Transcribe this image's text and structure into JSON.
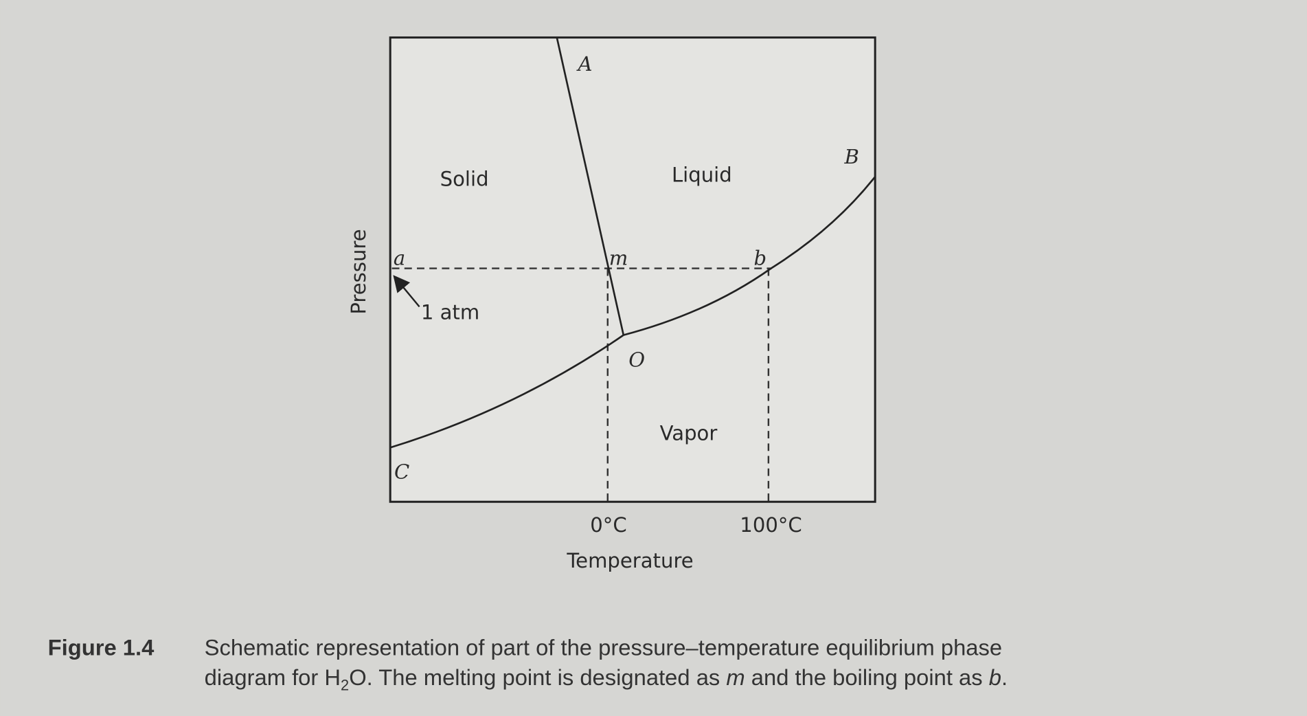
{
  "diagram": {
    "regions": {
      "solid": "Solid",
      "liquid": "Liquid",
      "vapor": "Vapor"
    },
    "points": {
      "A": "A",
      "B": "B",
      "C": "C",
      "O": "O",
      "a": "a",
      "m": "m",
      "b": "b"
    },
    "pressure_label": "1 atm",
    "x_ticks": [
      "0°C",
      "100°C"
    ],
    "x_axis_label": "Temperature",
    "y_axis_label": "Pressure"
  },
  "caption": {
    "label": "Figure 1.4",
    "line1": "Schematic representation of part of the pressure–temperature equilibrium phase",
    "line2": [
      "diagram for H",
      "2",
      "O. The melting point is designated as ",
      "m",
      " and the boiling point as ",
      "b",
      "."
    ]
  }
}
